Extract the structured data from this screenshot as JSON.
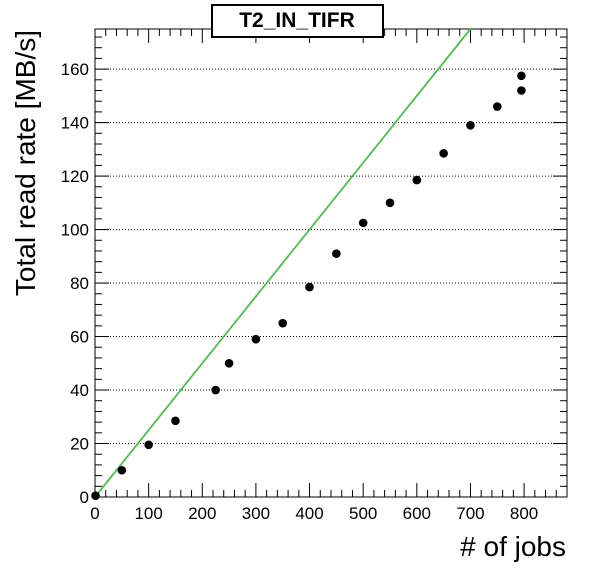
{
  "chart_data": {
    "type": "scatter",
    "title": "T2_IN_TIFR",
    "xlabel": "# of jobs",
    "ylabel": "Total read rate [MB/s]",
    "xlim": [
      0,
      880
    ],
    "ylim": [
      0,
      175
    ],
    "x_ticks": [
      0,
      100,
      200,
      300,
      400,
      500,
      600,
      700,
      800
    ],
    "y_ticks": [
      0,
      20,
      40,
      60,
      80,
      100,
      120,
      140,
      160
    ],
    "grid": {
      "horizontal": true,
      "vertical": false,
      "style": "dotted"
    },
    "series": [
      {
        "type": "scatter",
        "color": "#000000",
        "points": [
          {
            "x": 1,
            "y": 0.5
          },
          {
            "x": 50,
            "y": 10
          },
          {
            "x": 100,
            "y": 19.5
          },
          {
            "x": 150,
            "y": 28.5
          },
          {
            "x": 225,
            "y": 40
          },
          {
            "x": 250,
            "y": 50
          },
          {
            "x": 300,
            "y": 59
          },
          {
            "x": 350,
            "y": 65
          },
          {
            "x": 400,
            "y": 78.5
          },
          {
            "x": 450,
            "y": 91
          },
          {
            "x": 500,
            "y": 102.5
          },
          {
            "x": 550,
            "y": 110
          },
          {
            "x": 600,
            "y": 118.5
          },
          {
            "x": 650,
            "y": 128.5
          },
          {
            "x": 700,
            "y": 139
          },
          {
            "x": 750,
            "y": 146
          },
          {
            "x": 795,
            "y": 157.5
          },
          {
            "x": 795,
            "y": 152
          }
        ]
      },
      {
        "type": "line",
        "color": "#4cbf4c",
        "points": [
          {
            "x": 0,
            "y": 0
          },
          {
            "x": 700,
            "y": 175
          }
        ]
      }
    ]
  }
}
